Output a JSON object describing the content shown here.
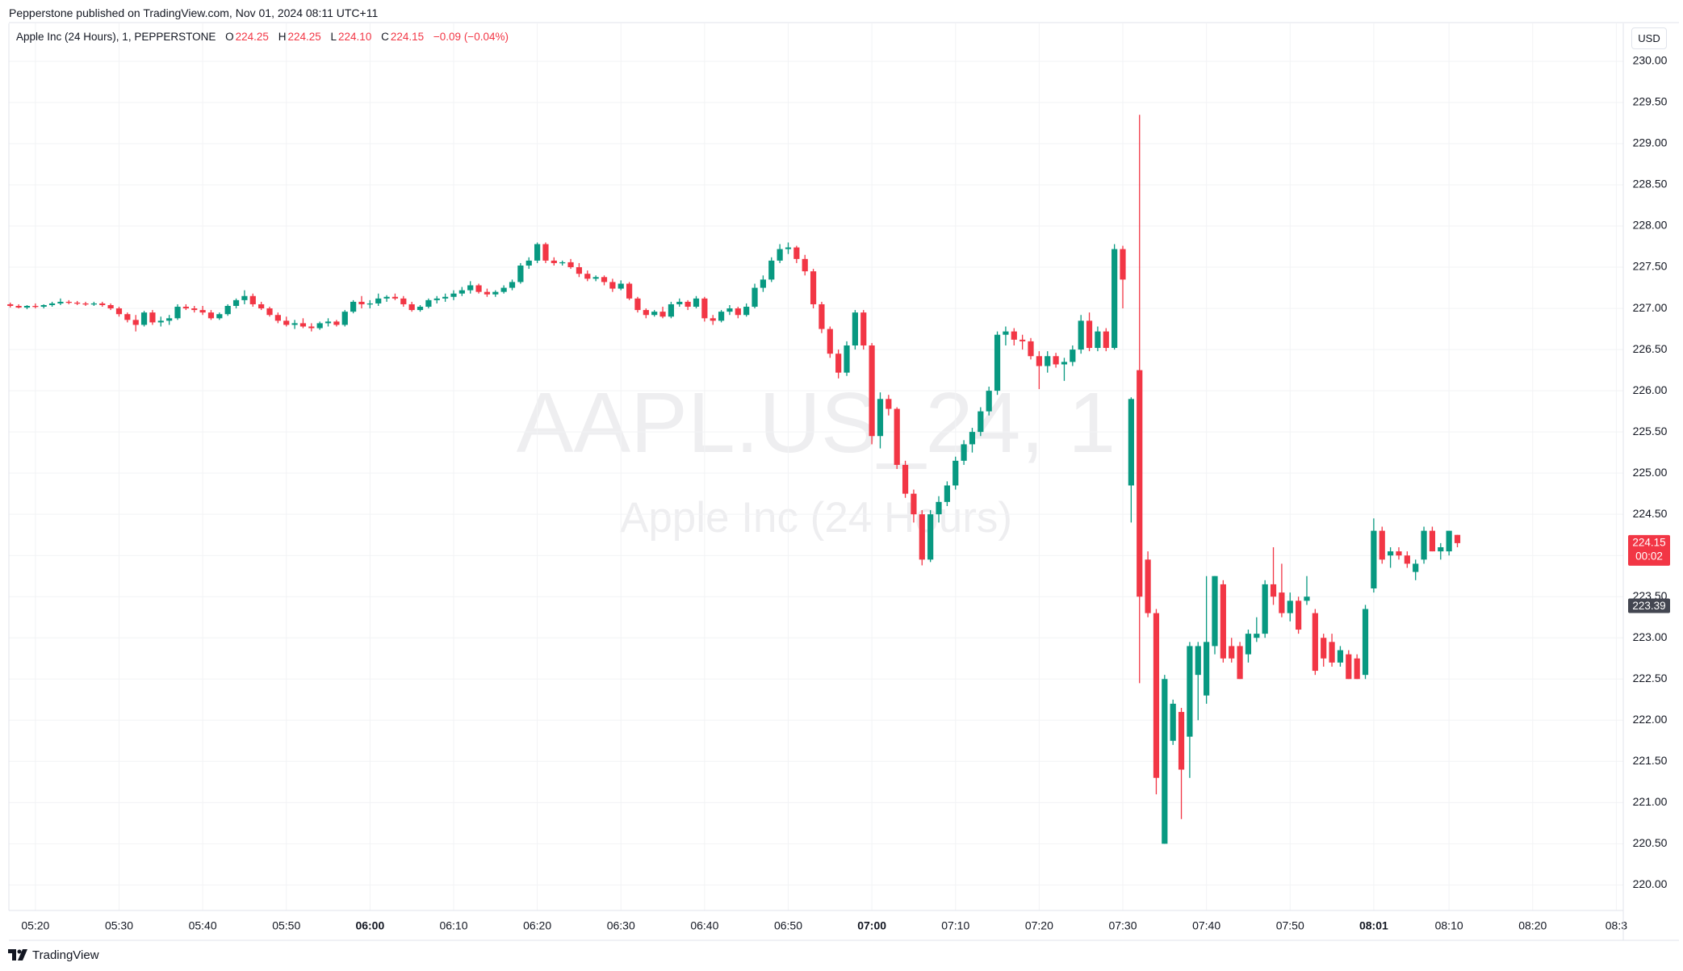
{
  "header": {
    "published": "Pepperstone published on TradingView.com, Nov 01, 2024 08:11 UTC+11"
  },
  "chart_data": {
    "type": "candlestick",
    "symbol": "Apple Inc (24 Hours), 1, PEPPERSTONE",
    "legend": {
      "open_label": "O",
      "open": "224.25",
      "high_label": "H",
      "high": "224.25",
      "low_label": "L",
      "low": "224.10",
      "close_label": "C",
      "close": "224.15",
      "change": "−0.09 (−0.04%)"
    },
    "watermark": "AAPL.US_24, 1",
    "watermark_subtitle": "Apple Inc (24 Hours)",
    "currency": "USD",
    "up_color": "#089981",
    "down_color": "#f23645",
    "grid": true,
    "ylim": [
      219.69,
      230.46
    ],
    "yticks": [
      {
        "value": 220,
        "label": "220.00"
      },
      {
        "value": 220.5,
        "label": "220.50"
      },
      {
        "value": 221,
        "label": "221.00"
      },
      {
        "value": 221.5,
        "label": "221.50"
      },
      {
        "value": 222,
        "label": "222.00"
      },
      {
        "value": 222.5,
        "label": "222.50"
      },
      {
        "value": 223,
        "label": "223.00"
      },
      {
        "value": 223.5,
        "label": "223.50"
      },
      {
        "value": 224,
        "label": "224.00"
      },
      {
        "value": 224.5,
        "label": "224.50"
      },
      {
        "value": 225,
        "label": "225.00"
      },
      {
        "value": 225.5,
        "label": "225.50"
      },
      {
        "value": 226,
        "label": "226.00"
      },
      {
        "value": 226.5,
        "label": "226.50"
      },
      {
        "value": 227,
        "label": "227.00"
      },
      {
        "value": 227.5,
        "label": "227.50"
      },
      {
        "value": 228,
        "label": "228.00"
      },
      {
        "value": 228.5,
        "label": "228.50"
      },
      {
        "value": 229,
        "label": "229.00"
      },
      {
        "value": 229.5,
        "label": "229.50"
      },
      {
        "value": 230,
        "label": "230.00"
      }
    ],
    "last_price": 224.15,
    "countdown": "00:02",
    "marker_price": 223.39,
    "categories": [
      null,
      null,
      null,
      "05:20",
      null,
      null,
      null,
      null,
      null,
      null,
      null,
      null,
      null,
      "05:30",
      null,
      null,
      null,
      null,
      null,
      null,
      null,
      null,
      null,
      "05:40",
      null,
      null,
      null,
      null,
      null,
      null,
      null,
      null,
      null,
      "05:50",
      null,
      null,
      null,
      null,
      null,
      null,
      null,
      null,
      null,
      "06:00",
      null,
      null,
      null,
      null,
      null,
      null,
      null,
      null,
      null,
      "06:10",
      null,
      null,
      null,
      null,
      null,
      null,
      null,
      null,
      null,
      "06:20",
      null,
      null,
      null,
      null,
      null,
      null,
      null,
      null,
      null,
      "06:30",
      null,
      null,
      null,
      null,
      null,
      null,
      null,
      null,
      null,
      "06:40",
      null,
      null,
      null,
      null,
      null,
      null,
      null,
      null,
      null,
      "06:50",
      null,
      null,
      null,
      null,
      null,
      null,
      null,
      null,
      null,
      "07:00",
      null,
      null,
      null,
      null,
      null,
      null,
      null,
      null,
      null,
      "07:10",
      null,
      null,
      null,
      null,
      null,
      null,
      null,
      null,
      null,
      "07:20",
      null,
      null,
      null,
      null,
      null,
      null,
      null,
      null,
      null,
      "07:30",
      null,
      null,
      null,
      null,
      null,
      null,
      null,
      null,
      null,
      "07:40",
      null,
      null,
      null,
      null,
      null,
      null,
      null,
      null,
      null,
      "07:50",
      null,
      null,
      null,
      null,
      null,
      null,
      null,
      null,
      null,
      "08:01",
      null,
      null,
      null,
      null,
      null,
      null,
      null,
      null,
      "08:10",
      null,
      null,
      null,
      null,
      null,
      null,
      null,
      null,
      null,
      "08:20",
      null,
      null,
      null,
      null,
      null,
      null,
      null,
      null,
      null,
      "08:3"
    ],
    "values": [
      [
        227.05,
        227.07,
        227.01,
        227.03
      ],
      [
        227.03,
        227.05,
        227.0,
        227.01
      ],
      [
        227.01,
        227.04,
        226.99,
        227.03
      ],
      [
        227.03,
        227.06,
        227.0,
        227.02
      ],
      [
        227.02,
        227.05,
        227.0,
        227.04
      ],
      [
        227.04,
        227.08,
        227.02,
        227.06
      ],
      [
        227.06,
        227.12,
        227.04,
        227.08
      ],
      [
        227.08,
        227.1,
        227.05,
        227.07
      ],
      [
        227.07,
        227.09,
        227.04,
        227.06
      ],
      [
        227.06,
        227.08,
        227.03,
        227.05
      ],
      [
        227.05,
        227.08,
        227.03,
        227.06
      ],
      [
        227.06,
        227.08,
        227.02,
        227.04
      ],
      [
        227.04,
        227.06,
        226.98,
        227.0
      ],
      [
        227.0,
        227.02,
        226.9,
        226.93
      ],
      [
        226.93,
        226.95,
        226.83,
        226.86
      ],
      [
        226.86,
        226.92,
        226.72,
        226.8
      ],
      [
        226.8,
        226.97,
        226.78,
        226.95
      ],
      [
        226.95,
        226.98,
        226.8,
        226.83
      ],
      [
        226.83,
        226.9,
        226.78,
        226.85
      ],
      [
        226.85,
        226.92,
        226.8,
        226.88
      ],
      [
        226.88,
        227.05,
        226.86,
        227.02
      ],
      [
        227.02,
        227.05,
        226.98,
        227.0
      ],
      [
        227.0,
        227.03,
        226.95,
        226.98
      ],
      [
        226.98,
        227.03,
        226.92,
        226.95
      ],
      [
        226.95,
        226.98,
        226.86,
        226.88
      ],
      [
        226.88,
        226.95,
        226.86,
        226.93
      ],
      [
        226.93,
        227.05,
        226.91,
        227.03
      ],
      [
        227.03,
        227.12,
        227.0,
        227.1
      ],
      [
        227.1,
        227.22,
        227.05,
        227.15
      ],
      [
        227.15,
        227.18,
        227.02,
        227.05
      ],
      [
        227.05,
        227.08,
        226.98,
        227.0
      ],
      [
        227.0,
        227.02,
        226.9,
        226.92
      ],
      [
        226.92,
        226.95,
        226.82,
        226.85
      ],
      [
        226.85,
        226.9,
        226.78,
        226.8
      ],
      [
        226.8,
        226.86,
        226.75,
        226.82
      ],
      [
        226.82,
        226.88,
        226.76,
        226.78
      ],
      [
        226.78,
        226.82,
        226.72,
        226.76
      ],
      [
        226.76,
        226.84,
        226.74,
        226.82
      ],
      [
        226.82,
        226.88,
        226.78,
        226.84
      ],
      [
        226.84,
        226.86,
        226.78,
        226.8
      ],
      [
        226.8,
        226.98,
        226.78,
        226.96
      ],
      [
        226.96,
        227.1,
        226.94,
        227.08
      ],
      [
        227.08,
        227.15,
        227.0,
        227.05
      ],
      [
        227.05,
        227.1,
        227.0,
        227.06
      ],
      [
        227.06,
        227.18,
        227.03,
        227.12
      ],
      [
        227.12,
        227.16,
        227.08,
        227.14
      ],
      [
        227.14,
        227.18,
        227.1,
        227.12
      ],
      [
        227.12,
        227.15,
        227.02,
        227.05
      ],
      [
        227.05,
        227.08,
        226.96,
        226.98
      ],
      [
        226.98,
        227.04,
        226.96,
        227.02
      ],
      [
        227.02,
        227.12,
        227.0,
        227.1
      ],
      [
        227.1,
        227.15,
        227.06,
        227.12
      ],
      [
        227.12,
        227.18,
        227.08,
        227.14
      ],
      [
        227.14,
        227.22,
        227.1,
        227.18
      ],
      [
        227.18,
        227.26,
        227.15,
        227.22
      ],
      [
        227.22,
        227.33,
        227.18,
        227.28
      ],
      [
        227.28,
        227.3,
        227.18,
        227.2
      ],
      [
        227.2,
        227.24,
        227.14,
        227.17
      ],
      [
        227.17,
        227.22,
        227.14,
        227.2
      ],
      [
        227.2,
        227.28,
        227.18,
        227.25
      ],
      [
        227.25,
        227.35,
        227.22,
        227.32
      ],
      [
        227.32,
        227.55,
        227.3,
        227.52
      ],
      [
        227.52,
        227.62,
        227.48,
        227.58
      ],
      [
        227.58,
        227.8,
        227.55,
        227.78
      ],
      [
        227.78,
        227.8,
        227.55,
        227.58
      ],
      [
        227.58,
        227.62,
        227.52,
        227.55
      ],
      [
        227.55,
        227.58,
        227.52,
        227.56
      ],
      [
        227.56,
        227.6,
        227.48,
        227.5
      ],
      [
        227.5,
        227.55,
        227.38,
        227.42
      ],
      [
        227.42,
        227.46,
        227.33,
        227.36
      ],
      [
        227.36,
        227.4,
        227.33,
        227.38
      ],
      [
        227.38,
        227.4,
        227.28,
        227.32
      ],
      [
        227.32,
        227.36,
        227.2,
        227.24
      ],
      [
        227.24,
        227.34,
        227.22,
        227.3
      ],
      [
        227.3,
        227.32,
        227.1,
        227.12
      ],
      [
        227.12,
        227.14,
        226.95,
        226.98
      ],
      [
        226.98,
        227.0,
        226.88,
        226.92
      ],
      [
        226.92,
        226.98,
        226.9,
        226.96
      ],
      [
        226.96,
        227.02,
        226.88,
        226.9
      ],
      [
        226.9,
        227.08,
        226.88,
        227.05
      ],
      [
        227.05,
        227.12,
        227.02,
        227.08
      ],
      [
        227.08,
        227.1,
        226.98,
        227.02
      ],
      [
        227.02,
        227.15,
        227.0,
        227.12
      ],
      [
        227.12,
        227.14,
        226.84,
        226.88
      ],
      [
        226.88,
        226.92,
        226.8,
        226.85
      ],
      [
        226.85,
        226.98,
        226.83,
        226.96
      ],
      [
        226.96,
        227.04,
        226.92,
        227.0
      ],
      [
        227.0,
        227.02,
        226.88,
        226.92
      ],
      [
        226.92,
        227.06,
        226.9,
        227.02
      ],
      [
        227.02,
        227.3,
        227.0,
        227.25
      ],
      [
        227.25,
        227.4,
        227.2,
        227.35
      ],
      [
        227.35,
        227.62,
        227.32,
        227.58
      ],
      [
        227.58,
        227.78,
        227.55,
        227.72
      ],
      [
        227.72,
        227.8,
        227.66,
        227.74
      ],
      [
        227.74,
        227.76,
        227.55,
        227.6
      ],
      [
        227.6,
        227.65,
        227.4,
        227.45
      ],
      [
        227.45,
        227.48,
        227.0,
        227.05
      ],
      [
        227.05,
        227.08,
        226.7,
        226.75
      ],
      [
        226.75,
        226.78,
        226.4,
        226.45
      ],
      [
        226.45,
        226.5,
        226.15,
        226.22
      ],
      [
        226.22,
        226.6,
        226.18,
        226.55
      ],
      [
        226.55,
        226.98,
        226.5,
        226.95
      ],
      [
        226.95,
        226.98,
        226.5,
        226.55
      ],
      [
        226.55,
        226.58,
        225.35,
        225.45
      ],
      [
        225.45,
        225.98,
        225.3,
        225.9
      ],
      [
        225.9,
        225.95,
        225.7,
        225.78
      ],
      [
        225.78,
        225.8,
        225.05,
        225.1
      ],
      [
        225.1,
        225.15,
        224.7,
        224.75
      ],
      [
        224.75,
        224.8,
        224.4,
        224.5
      ],
      [
        224.5,
        224.55,
        223.88,
        223.95
      ],
      [
        223.95,
        224.55,
        223.92,
        224.5
      ],
      [
        224.5,
        224.72,
        224.4,
        224.65
      ],
      [
        224.65,
        224.9,
        224.6,
        224.85
      ],
      [
        224.85,
        225.2,
        224.8,
        225.15
      ],
      [
        225.15,
        225.4,
        225.1,
        225.35
      ],
      [
        225.35,
        225.55,
        225.25,
        225.5
      ],
      [
        225.5,
        225.8,
        225.45,
        225.75
      ],
      [
        225.75,
        226.05,
        225.7,
        226.0
      ],
      [
        226.0,
        226.72,
        225.95,
        226.68
      ],
      [
        226.68,
        226.78,
        226.55,
        226.72
      ],
      [
        226.72,
        226.76,
        226.55,
        226.62
      ],
      [
        226.62,
        226.68,
        226.5,
        226.6
      ],
      [
        226.6,
        226.64,
        226.38,
        226.42
      ],
      [
        226.42,
        226.48,
        226.02,
        226.3
      ],
      [
        226.3,
        226.48,
        226.22,
        226.42
      ],
      [
        226.42,
        226.46,
        226.28,
        226.32
      ],
      [
        226.32,
        226.4,
        226.12,
        226.35
      ],
      [
        226.35,
        226.55,
        226.3,
        226.5
      ],
      [
        226.5,
        226.92,
        226.45,
        226.85
      ],
      [
        226.85,
        226.95,
        226.48,
        226.52
      ],
      [
        226.52,
        226.78,
        226.48,
        226.72
      ],
      [
        226.72,
        226.76,
        226.48,
        226.52
      ],
      [
        226.52,
        227.78,
        226.5,
        227.72
      ],
      [
        227.72,
        227.76,
        227.0,
        227.35
      ],
      [
        224.85,
        225.92,
        224.4,
        225.9
      ],
      [
        226.25,
        229.35,
        222.45,
        223.5
      ],
      [
        223.95,
        224.05,
        223.25,
        223.3
      ],
      [
        223.3,
        223.35,
        221.1,
        221.3
      ],
      [
        220.5,
        222.55,
        220.5,
        222.5
      ],
      [
        221.75,
        222.25,
        221.7,
        222.2
      ],
      [
        222.1,
        222.15,
        220.8,
        221.4
      ],
      [
        221.8,
        222.95,
        221.3,
        222.9
      ],
      [
        222.55,
        222.95,
        222.0,
        222.9
      ],
      [
        222.3,
        223.75,
        222.2,
        222.95
      ],
      [
        222.9,
        223.75,
        222.8,
        223.75
      ],
      [
        223.65,
        223.7,
        222.7,
        222.75
      ],
      [
        222.9,
        223.0,
        222.7,
        222.75
      ],
      [
        222.9,
        222.95,
        222.5,
        222.5
      ],
      [
        222.8,
        223.1,
        222.7,
        223.05
      ],
      [
        223.0,
        223.25,
        222.95,
        223.05
      ],
      [
        223.05,
        223.7,
        223.0,
        223.65
      ],
      [
        223.65,
        224.1,
        223.4,
        223.5
      ],
      [
        223.55,
        223.9,
        223.25,
        223.3
      ],
      [
        223.3,
        223.55,
        223.2,
        223.45
      ],
      [
        223.45,
        223.5,
        223.05,
        223.1
      ],
      [
        223.45,
        223.75,
        223.4,
        223.5
      ],
      [
        223.3,
        223.35,
        222.55,
        222.6
      ],
      [
        223.0,
        223.05,
        222.65,
        222.75
      ],
      [
        222.95,
        223.05,
        222.65,
        222.7
      ],
      [
        222.7,
        222.9,
        222.65,
        222.85
      ],
      [
        222.8,
        222.85,
        222.5,
        222.5
      ],
      [
        222.75,
        222.8,
        222.5,
        222.5
      ],
      [
        222.55,
        223.4,
        222.5,
        223.35
      ],
      [
        223.6,
        224.45,
        223.55,
        224.3
      ],
      [
        224.3,
        224.35,
        223.9,
        223.95
      ],
      [
        224.0,
        224.1,
        223.85,
        224.05
      ],
      [
        224.05,
        224.1,
        223.95,
        224.0
      ],
      [
        224.0,
        224.05,
        223.85,
        223.9
      ],
      [
        223.8,
        223.95,
        223.7,
        223.9
      ],
      [
        223.95,
        224.35,
        223.9,
        224.3
      ],
      [
        224.3,
        224.35,
        224.05,
        224.05
      ],
      [
        224.05,
        224.15,
        223.95,
        224.1
      ],
      [
        224.05,
        224.3,
        224.0,
        224.3
      ],
      [
        224.25,
        224.25,
        224.1,
        224.15
      ],
      null,
      null,
      null,
      null,
      null,
      null,
      null,
      null,
      null,
      null,
      null,
      null,
      null,
      null,
      null,
      null,
      null,
      null,
      null
    ]
  },
  "footer": {
    "brand": "TradingView"
  }
}
